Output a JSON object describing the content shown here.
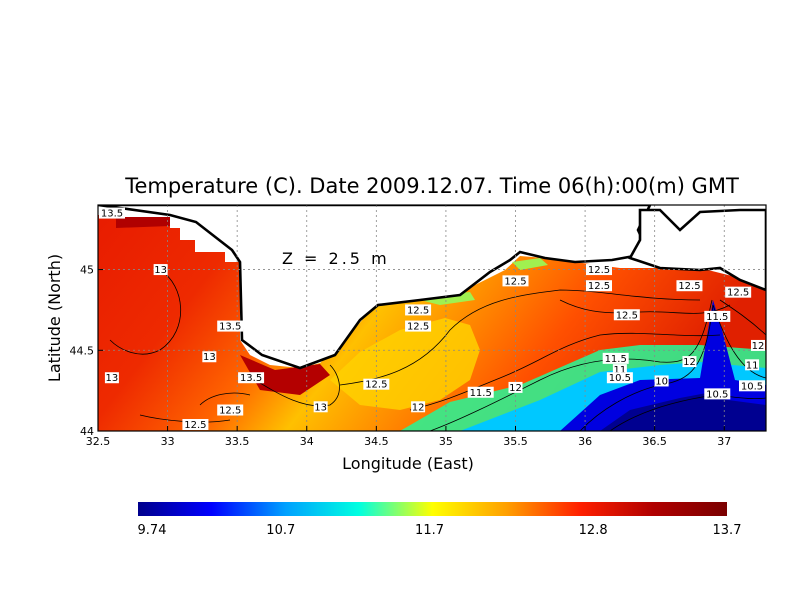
{
  "title": "Temperature (C). Date 2009.12.07. Time 06(h):00(m) GMT",
  "depth_label": "Z = 2.5 m",
  "xlabel": "Longitude (East)",
  "ylabel": "Latitude (North)",
  "x_ticks": [
    "32.5",
    "33",
    "33.5",
    "34",
    "34.5",
    "35",
    "35.5",
    "36",
    "36.5",
    "37"
  ],
  "y_ticks": [
    "44",
    "44.5",
    "45"
  ],
  "colorbar": {
    "ticks": [
      "9.74",
      "10.7",
      "11.7",
      "12.8",
      "13.7"
    ],
    "colors": [
      "#00008c",
      "#0000ff",
      "#00a0ff",
      "#00ffe0",
      "#ffff00",
      "#ffa000",
      "#ff2000",
      "#b00000",
      "#7a0000"
    ]
  },
  "chart_data": {
    "type": "heatmap",
    "title": "Temperature (C). Date 2009.12.07. Time 06(h):00(m) GMT",
    "xlabel": "Longitude (East)",
    "ylabel": "Latitude (North)",
    "xlim": [
      32.5,
      37.3
    ],
    "ylim": [
      44.0,
      45.4
    ],
    "value_range": [
      9.74,
      13.7
    ],
    "grid": true,
    "contour_labels": [
      {
        "text": "13.5",
        "lon": 32.52,
        "lat": 45.35
      },
      {
        "text": "13",
        "lon": 32.95,
        "lat": 45.0
      },
      {
        "text": "13.5",
        "lon": 33.45,
        "lat": 44.65
      },
      {
        "text": "13",
        "lon": 33.3,
        "lat": 44.46
      },
      {
        "text": "13",
        "lon": 32.6,
        "lat": 44.33
      },
      {
        "text": "13.5",
        "lon": 33.6,
        "lat": 44.33
      },
      {
        "text": "12.5",
        "lon": 33.45,
        "lat": 44.13
      },
      {
        "text": "12.5",
        "lon": 33.2,
        "lat": 44.0
      },
      {
        "text": "13",
        "lon": 34.1,
        "lat": 44.15
      },
      {
        "text": "12.5",
        "lon": 34.5,
        "lat": 44.29
      },
      {
        "text": "12",
        "lon": 34.8,
        "lat": 44.15
      },
      {
        "text": "12.5",
        "lon": 35.5,
        "lat": 44.93
      },
      {
        "text": "12.5",
        "lon": 36.1,
        "lat": 45.0
      },
      {
        "text": "12.5",
        "lon": 36.1,
        "lat": 44.9
      },
      {
        "text": "12.5",
        "lon": 36.75,
        "lat": 44.9
      },
      {
        "text": "12.5",
        "lon": 37.1,
        "lat": 44.86
      },
      {
        "text": "12.5",
        "lon": 34.8,
        "lat": 44.75
      },
      {
        "text": "12.5",
        "lon": 34.8,
        "lat": 44.65
      },
      {
        "text": "12.5",
        "lon": 36.3,
        "lat": 44.72
      },
      {
        "text": "11.5",
        "lon": 36.95,
        "lat": 44.71
      },
      {
        "text": "11.5",
        "lon": 35.25,
        "lat": 44.24
      },
      {
        "text": "12",
        "lon": 35.5,
        "lat": 44.27
      },
      {
        "text": "11.5",
        "lon": 36.22,
        "lat": 44.45
      },
      {
        "text": "11",
        "lon": 36.25,
        "lat": 44.38
      },
      {
        "text": "10.5",
        "lon": 36.25,
        "lat": 44.33
      },
      {
        "text": "10",
        "lon": 36.55,
        "lat": 44.31
      },
      {
        "text": "12",
        "lon": 36.75,
        "lat": 44.43
      },
      {
        "text": "10.5",
        "lon": 36.95,
        "lat": 44.23
      },
      {
        "text": "11",
        "lon": 37.2,
        "lat": 44.41
      },
      {
        "text": "12",
        "lon": 37.35,
        "lat": 44.53
      },
      {
        "text": "10.5",
        "lon": 37.35,
        "lat": 44.28
      }
    ]
  }
}
